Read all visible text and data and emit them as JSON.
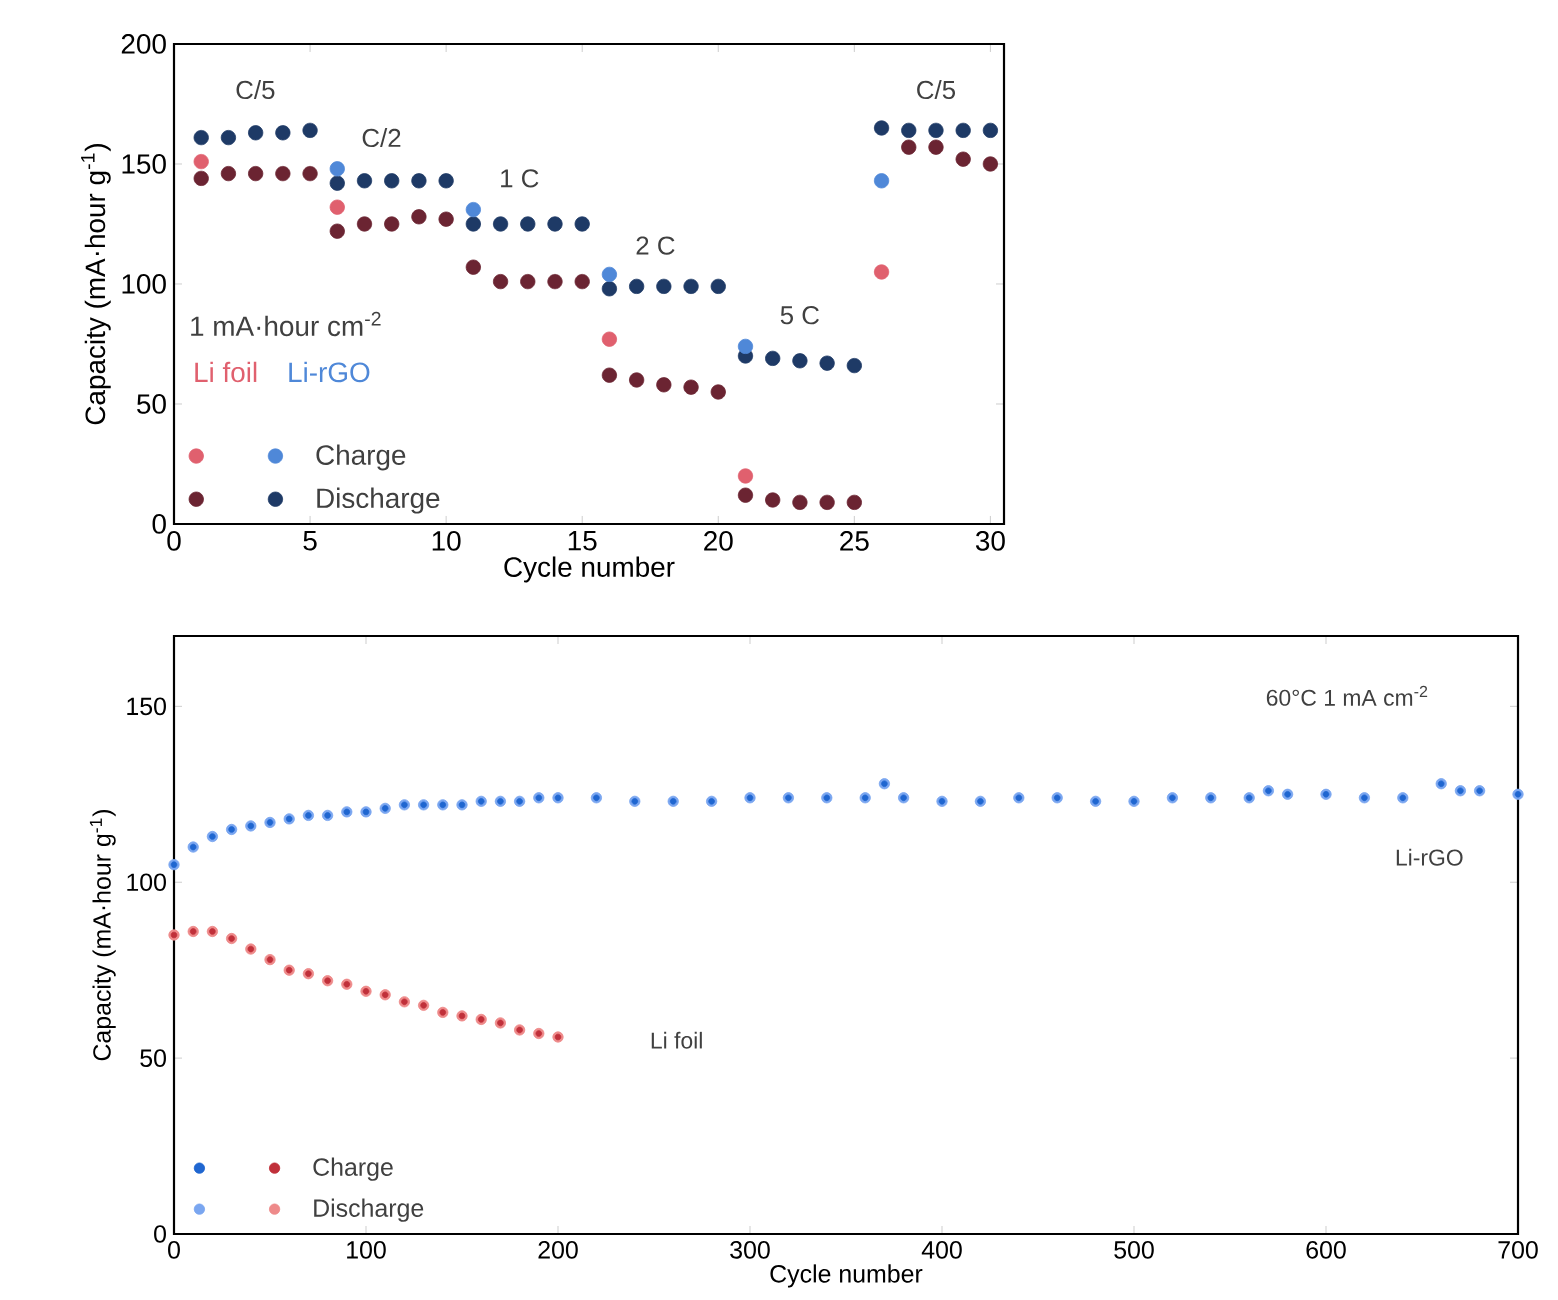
{
  "chart_data": [
    {
      "type": "scatter",
      "xlabel": "Cycle number",
      "ylabel": "Capacity (mA·hour g$^{-1}$)",
      "xlim": [
        0,
        30.5
      ],
      "ylim": [
        0,
        200
      ],
      "xticks": [
        0,
        5,
        10,
        15,
        20,
        25,
        30
      ],
      "yticks": [
        0,
        50,
        100,
        150,
        200
      ],
      "marker": "circle",
      "legend": "bottom left",
      "legend_title": "1 mA·hour cm$^{-2}$",
      "x": [
        1,
        2,
        3,
        4,
        5,
        6,
        7,
        8,
        9,
        10,
        11,
        12,
        13,
        14,
        15,
        16,
        17,
        18,
        19,
        20,
        21,
        22,
        23,
        24,
        25,
        26,
        27,
        28,
        29,
        30
      ],
      "series": [
        {
          "color": "#e0606e",
          "values": [
            151,
            null,
            null,
            null,
            null,
            132,
            null,
            null,
            null,
            null,
            null,
            null,
            null,
            null,
            null,
            77,
            null,
            null,
            null,
            null,
            20,
            null,
            null,
            null,
            null,
            105,
            null,
            null,
            null,
            null
          ]
        },
        {
          "color": "#6b2432",
          "values": [
            144,
            146,
            146,
            146,
            146,
            122,
            125,
            125,
            128,
            127,
            107,
            101,
            101,
            101,
            101,
            62,
            60,
            58,
            57,
            55,
            12,
            10,
            9,
            9,
            9,
            null,
            157,
            157,
            152,
            150
          ]
        },
        {
          "name": "Charge",
          "color": "#4f88d8",
          "values": [
            null,
            null,
            null,
            null,
            null,
            148,
            null,
            null,
            null,
            null,
            131,
            null,
            null,
            null,
            null,
            104,
            null,
            null,
            null,
            null,
            74,
            null,
            null,
            null,
            null,
            143,
            null,
            null,
            null,
            null
          ]
        },
        {
          "name": "Discharge",
          "color": "#1e3a66",
          "values": [
            161,
            161,
            163,
            163,
            164,
            142,
            143,
            143,
            143,
            143,
            125,
            125,
            125,
            125,
            125,
            98,
            99,
            99,
            99,
            99,
            70,
            69,
            68,
            67,
            66,
            165,
            164,
            164,
            164,
            164
          ]
        }
      ],
      "annotations": [
        "Li foil",
        "Li-rGO",
        "C/5",
        "C/2",
        "1 C",
        "2 C",
        "5 C",
        "C/5"
      ]
    },
    {
      "type": "scatter",
      "xlabel": "Cycle number",
      "ylabel": "Capacity (mA·hour g$^{-1}$)",
      "xlim": [
        0,
        700
      ],
      "ylim": [
        0,
        170
      ],
      "xticks": [
        0,
        100,
        200,
        300,
        400,
        500,
        600,
        700
      ],
      "yticks": [
        0,
        50,
        100,
        150
      ],
      "marker": "circle",
      "legend": "bottom left",
      "series": [
        {
          "color": "#1f66d0",
          "x": [
            0,
            10,
            20,
            30,
            40,
            50,
            60,
            70,
            80,
            90,
            100,
            110,
            120,
            130,
            140,
            150,
            160,
            170,
            180,
            190,
            200,
            220,
            240,
            260,
            280,
            300,
            320,
            340,
            360,
            370,
            380,
            400,
            420,
            440,
            460,
            480,
            500,
            520,
            540,
            560,
            570,
            580,
            600,
            620,
            640,
            660,
            670,
            680,
            700
          ],
          "values": [
            105,
            110,
            113,
            115,
            116,
            117,
            118,
            119,
            119,
            120,
            120,
            121,
            122,
            122,
            122,
            122,
            123,
            123,
            123,
            124,
            124,
            124,
            123,
            123,
            123,
            124,
            124,
            124,
            124,
            128,
            124,
            123,
            123,
            124,
            124,
            123,
            123,
            124,
            124,
            124,
            126,
            125,
            125,
            124,
            124,
            128,
            126,
            126,
            125
          ]
        },
        {
          "color": "#7aa6f0",
          "x": [
            0,
            10,
            20,
            30,
            40,
            50,
            60,
            70,
            80,
            90,
            100,
            110,
            120,
            130,
            140,
            150,
            160,
            170,
            180,
            190,
            200,
            220,
            240,
            260,
            280,
            300,
            320,
            340,
            360,
            370,
            380,
            400,
            420,
            440,
            460,
            480,
            500,
            520,
            540,
            560,
            570,
            580,
            600,
            620,
            640,
            660,
            670,
            680,
            700
          ],
          "values": [
            105,
            110,
            113,
            115,
            116,
            117,
            118,
            119,
            119,
            120,
            120,
            121,
            122,
            122,
            122,
            122,
            123,
            123,
            123,
            124,
            124,
            124,
            123,
            123,
            123,
            124,
            124,
            124,
            124,
            128,
            124,
            123,
            123,
            124,
            124,
            123,
            123,
            124,
            124,
            124,
            126,
            125,
            125,
            124,
            124,
            128,
            126,
            126,
            125
          ]
        },
        {
          "name": "Charge",
          "color": "#c0303a",
          "x": [
            0,
            10,
            20,
            30,
            40,
            50,
            60,
            70,
            80,
            90,
            100,
            110,
            120,
            130,
            140,
            150,
            160,
            170,
            180,
            190,
            200
          ],
          "values": [
            85,
            86,
            86,
            84,
            81,
            78,
            75,
            74,
            72,
            71,
            69,
            68,
            66,
            65,
            63,
            62,
            61,
            60,
            58,
            57,
            56
          ]
        },
        {
          "name": "Discharge",
          "color": "#ee8a8a",
          "x": [
            0,
            10,
            20,
            30,
            40,
            50,
            60,
            70,
            80,
            90,
            100,
            110,
            120,
            130,
            140,
            150,
            160,
            170,
            180,
            190,
            200
          ],
          "values": [
            85,
            86,
            86,
            84,
            81,
            78,
            75,
            74,
            72,
            71,
            69,
            68,
            66,
            65,
            63,
            62,
            61,
            60,
            58,
            57,
            56
          ]
        }
      ],
      "annotations": [
        "60°C 1 mA cm$^{-2}$",
        "Li-rGO",
        "Li foil"
      ]
    }
  ]
}
